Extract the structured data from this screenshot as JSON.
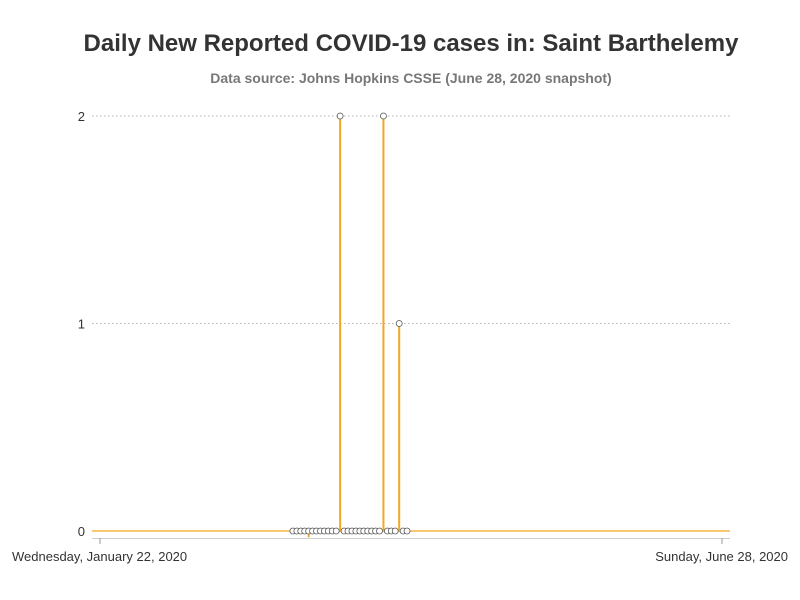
{
  "chart_data": {
    "type": "line",
    "title": "Daily New Reported COVID-19 cases in: Saint Barthelemy",
    "subtitle": "Data source: Johns Hopkins CSSE (June 28, 2020 snapshot)",
    "x_start": "2020-01-22",
    "x_end": "2020-06-28",
    "x_tick_labels": [
      "Wednesday, January 22, 2020",
      "Sunday, June 28, 2020"
    ],
    "y_ticks": [
      0,
      1,
      2
    ],
    "ylim": [
      0,
      2
    ],
    "grid": true,
    "series": [
      {
        "color": "#f5a623",
        "dates": [
          "2020-03-11",
          "2020-03-12",
          "2020-03-13",
          "2020-03-14",
          "2020-03-15",
          "2020-03-16",
          "2020-03-17",
          "2020-03-18",
          "2020-03-19",
          "2020-03-20",
          "2020-03-21",
          "2020-03-22",
          "2020-03-23",
          "2020-03-24",
          "2020-03-25",
          "2020-03-26",
          "2020-03-27",
          "2020-03-28",
          "2020-03-29",
          "2020-03-30",
          "2020-03-31",
          "2020-04-01",
          "2020-04-02",
          "2020-04-03",
          "2020-04-04",
          "2020-04-05",
          "2020-04-06",
          "2020-04-07",
          "2020-04-08",
          "2020-04-09"
        ],
        "values": [
          0,
          0,
          0,
          0,
          -0.03,
          0,
          0,
          0,
          0,
          0,
          0,
          0,
          2,
          0,
          0,
          0,
          0,
          0,
          0,
          0,
          0,
          0,
          0,
          2,
          0,
          0,
          0,
          1,
          0,
          0
        ]
      }
    ]
  }
}
